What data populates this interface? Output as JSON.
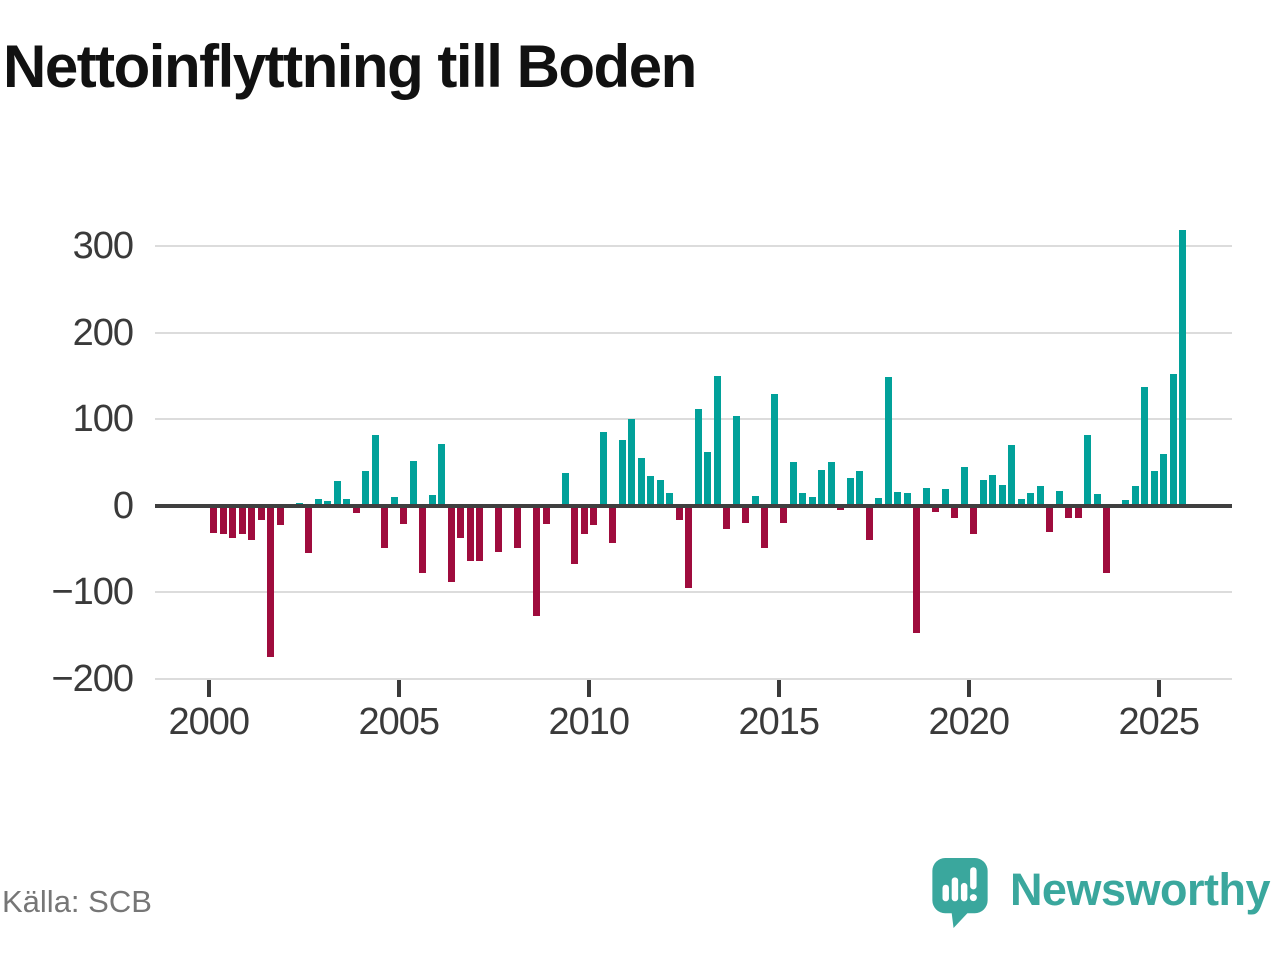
{
  "title": "Nettoinflyttning till Boden",
  "source": "Källa: SCB",
  "branding": {
    "name": "Newsworthy",
    "icon": "newsworthy-speech-bubble-bar-chart-icon",
    "color": "#3aa79d"
  },
  "chart_data": {
    "type": "bar",
    "title": "Nettoinflyttning till Boden",
    "xlabel": "",
    "ylabel": "",
    "x_frequency": "quarterly",
    "x_start": "2000-Q1",
    "x_end": "2025-Q3",
    "x_tick_labels": [
      "2000",
      "2005",
      "2010",
      "2015",
      "2020",
      "2025"
    ],
    "y_ticks": [
      300,
      200,
      100,
      0,
      -100,
      -200
    ],
    "y_tick_labels": [
      "300",
      "200",
      "100",
      "0",
      "−100",
      "−200"
    ],
    "ylim": [
      -200,
      320
    ],
    "grid": "horizontal",
    "legend": "none",
    "colors": {
      "positive": "#01a19a",
      "negative": "#9f0c3d"
    },
    "quarters": [
      "2000Q1",
      "2000Q2",
      "2000Q3",
      "2000Q4",
      "2001Q1",
      "2001Q2",
      "2001Q3",
      "2001Q4",
      "2002Q1",
      "2002Q2",
      "2002Q3",
      "2002Q4",
      "2003Q1",
      "2003Q2",
      "2003Q3",
      "2003Q4",
      "2004Q1",
      "2004Q2",
      "2004Q3",
      "2004Q4",
      "2005Q1",
      "2005Q2",
      "2005Q3",
      "2005Q4",
      "2006Q1",
      "2006Q2",
      "2006Q3",
      "2006Q4",
      "2007Q1",
      "2007Q2",
      "2007Q3",
      "2007Q4",
      "2008Q1",
      "2008Q2",
      "2008Q3",
      "2008Q4",
      "2009Q1",
      "2009Q2",
      "2009Q3",
      "2009Q4",
      "2010Q1",
      "2010Q2",
      "2010Q3",
      "2010Q4",
      "2011Q1",
      "2011Q2",
      "2011Q3",
      "2011Q4",
      "2012Q1",
      "2012Q2",
      "2012Q3",
      "2012Q4",
      "2013Q1",
      "2013Q2",
      "2013Q3",
      "2013Q4",
      "2014Q1",
      "2014Q2",
      "2014Q3",
      "2014Q4",
      "2015Q1",
      "2015Q2",
      "2015Q3",
      "2015Q4",
      "2016Q1",
      "2016Q2",
      "2016Q3",
      "2016Q4",
      "2017Q1",
      "2017Q2",
      "2017Q3",
      "2017Q4",
      "2018Q1",
      "2018Q2",
      "2018Q3",
      "2018Q4",
      "2019Q1",
      "2019Q2",
      "2019Q3",
      "2019Q4",
      "2020Q1",
      "2020Q2",
      "2020Q3",
      "2020Q4",
      "2021Q1",
      "2021Q2",
      "2021Q3",
      "2021Q4",
      "2022Q1",
      "2022Q2",
      "2022Q3",
      "2022Q4",
      "2023Q1",
      "2023Q2",
      "2023Q3",
      "2023Q4",
      "2024Q1",
      "2024Q2",
      "2024Q3",
      "2024Q4",
      "2025Q1",
      "2025Q2",
      "2025Q3"
    ],
    "values": [
      -32,
      -33,
      -38,
      -33,
      -40,
      -17,
      -175,
      -23,
      0,
      3,
      -55,
      8,
      5,
      28,
      7,
      -9,
      40,
      82,
      -49,
      10,
      -21,
      52,
      -78,
      12,
      71,
      -89,
      -38,
      -64,
      -64,
      0,
      -54,
      0,
      -49,
      0,
      -128,
      -21,
      0,
      37,
      -68,
      -33,
      -22,
      85,
      -43,
      76,
      100,
      55,
      34,
      30,
      14,
      -17,
      -95,
      111,
      62,
      150,
      -27,
      104,
      -20,
      11,
      -49,
      129,
      -20,
      50,
      15,
      10,
      41,
      50,
      -5,
      32,
      40,
      -40,
      9,
      149,
      16,
      14,
      -147,
      20,
      -8,
      19,
      -14,
      44,
      -33,
      30,
      35,
      24,
      70,
      7,
      14,
      23,
      -31,
      17,
      -14,
      -15,
      81,
      13,
      -78,
      -3,
      6,
      23,
      137,
      40,
      59,
      152,
      318
    ]
  }
}
